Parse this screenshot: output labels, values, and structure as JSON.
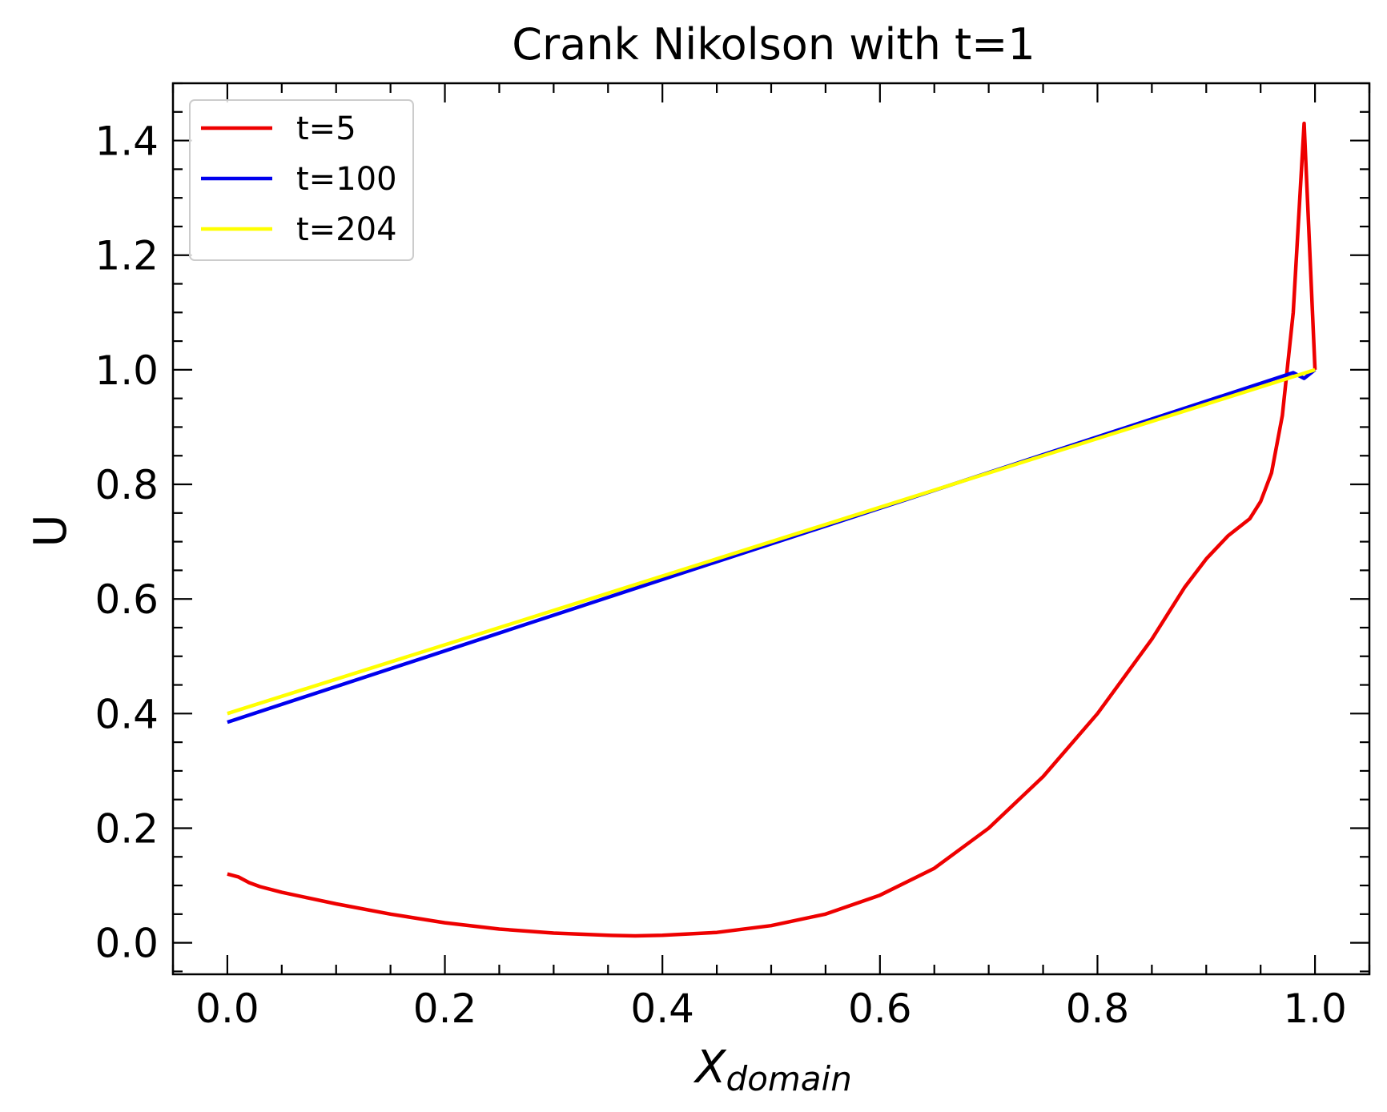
{
  "chart_data": {
    "type": "line",
    "title": "Crank Nikolson with t=1",
    "xlabel_main": "X",
    "xlabel_sub": "domain",
    "ylabel": "U",
    "xlim": [
      -0.05,
      1.05
    ],
    "ylim": [
      -0.055,
      1.5
    ],
    "xticks": [
      0.0,
      0.2,
      0.4,
      0.6,
      0.8,
      1.0
    ],
    "xtick_labels": [
      "0.0",
      "0.2",
      "0.4",
      "0.6",
      "0.8",
      "1.0"
    ],
    "yticks": [
      0.0,
      0.2,
      0.4,
      0.6,
      0.8,
      1.0,
      1.2,
      1.4
    ],
    "ytick_labels": [
      "0.0",
      "0.2",
      "0.4",
      "0.6",
      "0.8",
      "1.0",
      "1.2",
      "1.4"
    ],
    "grid": false,
    "legend_position": "top-left",
    "series": [
      {
        "name": "t=5",
        "color": "#ee0000",
        "x": [
          0.0,
          0.01,
          0.02,
          0.03,
          0.05,
          0.075,
          0.1,
          0.15,
          0.2,
          0.25,
          0.3,
          0.35,
          0.375,
          0.4,
          0.45,
          0.5,
          0.55,
          0.6,
          0.65,
          0.7,
          0.75,
          0.8,
          0.85,
          0.88,
          0.9,
          0.92,
          0.94,
          0.95,
          0.96,
          0.97,
          0.98,
          0.99,
          1.0
        ],
        "y": [
          0.12,
          0.115,
          0.105,
          0.098,
          0.088,
          0.078,
          0.068,
          0.05,
          0.035,
          0.024,
          0.017,
          0.013,
          0.012,
          0.013,
          0.018,
          0.03,
          0.05,
          0.083,
          0.13,
          0.2,
          0.29,
          0.4,
          0.53,
          0.62,
          0.67,
          0.71,
          0.74,
          0.77,
          0.82,
          0.92,
          1.1,
          1.43,
          1.0
        ]
      },
      {
        "name": "t=100",
        "color": "#0000ee",
        "x": [
          0.0,
          0.98,
          0.99,
          1.0
        ],
        "y": [
          0.385,
          0.995,
          0.985,
          1.0
        ]
      },
      {
        "name": "t=204",
        "color": "#ffff00",
        "x": [
          0.0,
          1.0
        ],
        "y": [
          0.4,
          1.0
        ]
      }
    ]
  }
}
